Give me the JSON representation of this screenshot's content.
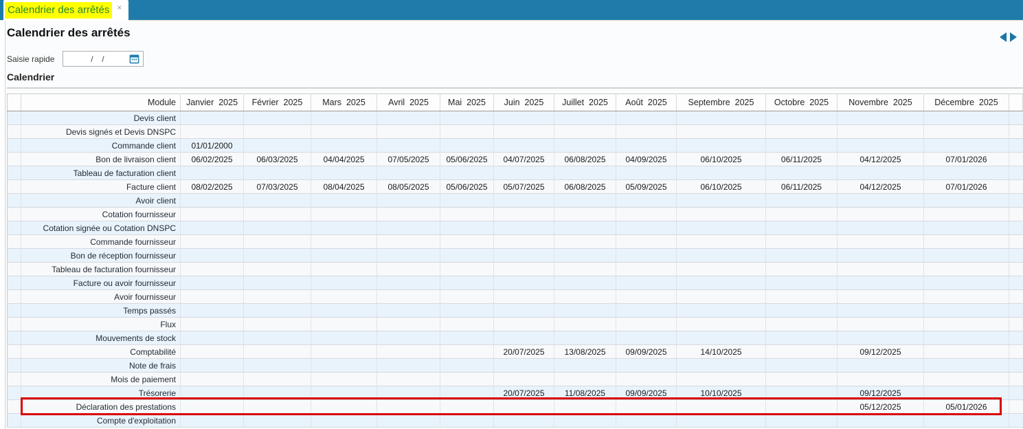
{
  "tab_bar": {
    "tab_label": "Calendrier des arrêtés",
    "close_glyph": "×"
  },
  "page": {
    "title": "Calendrier des arrêtés"
  },
  "quick_entry": {
    "label": "Saisie rapide",
    "value": "/  /"
  },
  "section": {
    "title": "Calendrier"
  },
  "colors": {
    "tab_bar_teal": "#1f7caa",
    "tab_highlight_yellow": "#ffff00",
    "tab_text_green": "#2a8a2a",
    "row_blue": "#e9f3fc",
    "row_white": "#f8f9fb",
    "highlight_red": "#d90000",
    "arrow_blue": "#1b76a4"
  },
  "table": {
    "module_header": "Module",
    "month_headers": [
      "Janvier  2025",
      "Février  2025",
      "Mars  2025",
      "Avril  2025",
      "Mai  2025",
      "Juin  2025",
      "Juillet  2025",
      "Août  2025",
      "Septembre  2025",
      "Octobre  2025",
      "Novembre  2025",
      "Décembre  2025"
    ],
    "rows": [
      {
        "module": "Devis client",
        "highlight": false,
        "dates": [
          "",
          "",
          "",
          "",
          "",
          "",
          "",
          "",
          "",
          "",
          "",
          ""
        ]
      },
      {
        "module": "Devis signés et Devis DNSPC",
        "highlight": false,
        "dates": [
          "",
          "",
          "",
          "",
          "",
          "",
          "",
          "",
          "",
          "",
          "",
          ""
        ]
      },
      {
        "module": "Commande client",
        "highlight": false,
        "dates": [
          "01/01/2000",
          "",
          "",
          "",
          "",
          "",
          "",
          "",
          "",
          "",
          "",
          ""
        ]
      },
      {
        "module": "Bon de livraison client",
        "highlight": false,
        "dates": [
          "06/02/2025",
          "06/03/2025",
          "04/04/2025",
          "07/05/2025",
          "05/06/2025",
          "04/07/2025",
          "06/08/2025",
          "04/09/2025",
          "06/10/2025",
          "06/11/2025",
          "04/12/2025",
          "07/01/2026"
        ]
      },
      {
        "module": "Tableau de facturation client",
        "highlight": false,
        "dates": [
          "",
          "",
          "",
          "",
          "",
          "",
          "",
          "",
          "",
          "",
          "",
          ""
        ]
      },
      {
        "module": "Facture client",
        "highlight": false,
        "dates": [
          "08/02/2025",
          "07/03/2025",
          "08/04/2025",
          "08/05/2025",
          "05/06/2025",
          "05/07/2025",
          "06/08/2025",
          "05/09/2025",
          "06/10/2025",
          "06/11/2025",
          "04/12/2025",
          "07/01/2026"
        ]
      },
      {
        "module": "Avoir client",
        "highlight": false,
        "dates": [
          "",
          "",
          "",
          "",
          "",
          "",
          "",
          "",
          "",
          "",
          "",
          ""
        ]
      },
      {
        "module": "Cotation fournisseur",
        "highlight": false,
        "dates": [
          "",
          "",
          "",
          "",
          "",
          "",
          "",
          "",
          "",
          "",
          "",
          ""
        ]
      },
      {
        "module": "Cotation signée ou Cotation DNSPC",
        "highlight": false,
        "dates": [
          "",
          "",
          "",
          "",
          "",
          "",
          "",
          "",
          "",
          "",
          "",
          ""
        ]
      },
      {
        "module": "Commande fournisseur",
        "highlight": false,
        "dates": [
          "",
          "",
          "",
          "",
          "",
          "",
          "",
          "",
          "",
          "",
          "",
          ""
        ]
      },
      {
        "module": "Bon de réception fournisseur",
        "highlight": false,
        "dates": [
          "",
          "",
          "",
          "",
          "",
          "",
          "",
          "",
          "",
          "",
          "",
          ""
        ]
      },
      {
        "module": "Tableau de facturation fournisseur",
        "highlight": false,
        "dates": [
          "",
          "",
          "",
          "",
          "",
          "",
          "",
          "",
          "",
          "",
          "",
          ""
        ]
      },
      {
        "module": "Facture ou avoir fournisseur",
        "highlight": false,
        "dates": [
          "",
          "",
          "",
          "",
          "",
          "",
          "",
          "",
          "",
          "",
          "",
          ""
        ]
      },
      {
        "module": "Avoir fournisseur",
        "highlight": false,
        "dates": [
          "",
          "",
          "",
          "",
          "",
          "",
          "",
          "",
          "",
          "",
          "",
          ""
        ]
      },
      {
        "module": "Temps passés",
        "highlight": false,
        "dates": [
          "",
          "",
          "",
          "",
          "",
          "",
          "",
          "",
          "",
          "",
          "",
          ""
        ]
      },
      {
        "module": "Flux",
        "highlight": false,
        "dates": [
          "",
          "",
          "",
          "",
          "",
          "",
          "",
          "",
          "",
          "",
          "",
          ""
        ]
      },
      {
        "module": "Mouvements de stock",
        "highlight": false,
        "dates": [
          "",
          "",
          "",
          "",
          "",
          "",
          "",
          "",
          "",
          "",
          "",
          ""
        ]
      },
      {
        "module": "Comptabilité",
        "highlight": false,
        "dates": [
          "",
          "",
          "",
          "",
          "",
          "20/07/2025",
          "13/08/2025",
          "09/09/2025",
          "14/10/2025",
          "",
          "09/12/2025",
          ""
        ]
      },
      {
        "module": "Note de frais",
        "highlight": false,
        "dates": [
          "",
          "",
          "",
          "",
          "",
          "",
          "",
          "",
          "",
          "",
          "",
          ""
        ]
      },
      {
        "module": "Mois de paiement",
        "highlight": false,
        "dates": [
          "",
          "",
          "",
          "",
          "",
          "",
          "",
          "",
          "",
          "",
          "",
          ""
        ]
      },
      {
        "module": "Trésorerie",
        "highlight": false,
        "dates": [
          "",
          "",
          "",
          "",
          "",
          "20/07/2025",
          "11/08/2025",
          "09/09/2025",
          "10/10/2025",
          "",
          "09/12/2025",
          ""
        ]
      },
      {
        "module": "Déclaration des prestations",
        "highlight": true,
        "dates": [
          "",
          "",
          "",
          "",
          "",
          "",
          "",
          "",
          "",
          "",
          "05/12/2025",
          "05/01/2026"
        ]
      },
      {
        "module": "Compte d'exploitation",
        "highlight": false,
        "dates": [
          "",
          "",
          "",
          "",
          "",
          "",
          "",
          "",
          "",
          "",
          "",
          ""
        ]
      }
    ]
  }
}
